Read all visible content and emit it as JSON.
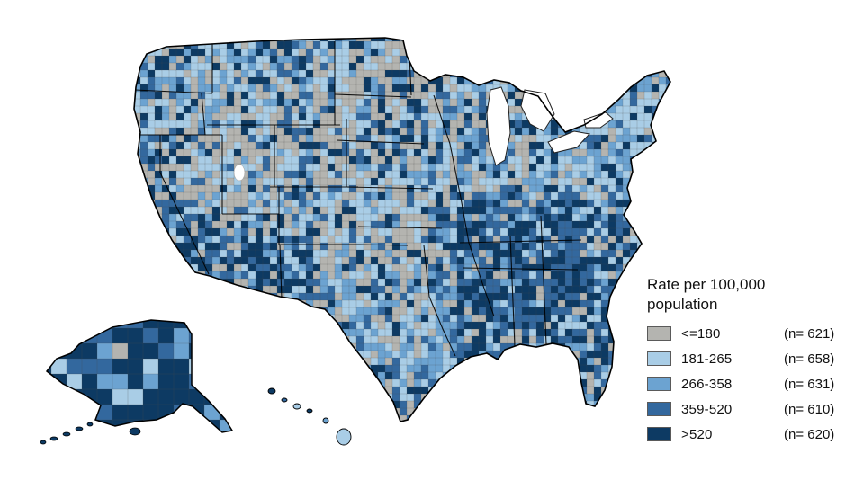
{
  "figure": {
    "description": "United States county-level choropleth map with Alaska and Hawaii insets",
    "background_color": "#ffffff"
  },
  "legend": {
    "title_line1": "Rate per 100,000",
    "title_line2": "population",
    "items": [
      {
        "label": "<=180",
        "count": "(n= 621)",
        "color": "#b4b4b0"
      },
      {
        "label": "181-265",
        "count": "(n= 658)",
        "color": "#a9cde6"
      },
      {
        "label": "266-358",
        "count": "(n= 631)",
        "color": "#6ca3d1"
      },
      {
        "label": "359-520",
        "count": "(n= 610)",
        "color": "#33689e"
      },
      {
        "label": ">520",
        "count": "(n= 620)",
        "color": "#0d3a63"
      }
    ]
  },
  "chart_data": {
    "type": "choropleth",
    "region": "United States counties (with Alaska and Hawaii insets)",
    "measure": "Rate per 100,000 population",
    "classes": [
      {
        "range": "<=180",
        "n": 621,
        "color": "#b4b4b0"
      },
      {
        "range": "181-265",
        "n": 658,
        "color": "#a9cde6"
      },
      {
        "range": "266-358",
        "n": 631,
        "color": "#6ca3d1"
      },
      {
        "range": "359-520",
        "n": 610,
        "color": "#33689e"
      },
      {
        "range": ">520",
        "n": 620,
        "color": "#0d3a63"
      }
    ],
    "legend_position": "right",
    "notes": "Higher rates concentrated in the Southeast, Four Corners region and Alaska; lower/gray rates concentrated in the Great Plains and Intermountain West"
  }
}
